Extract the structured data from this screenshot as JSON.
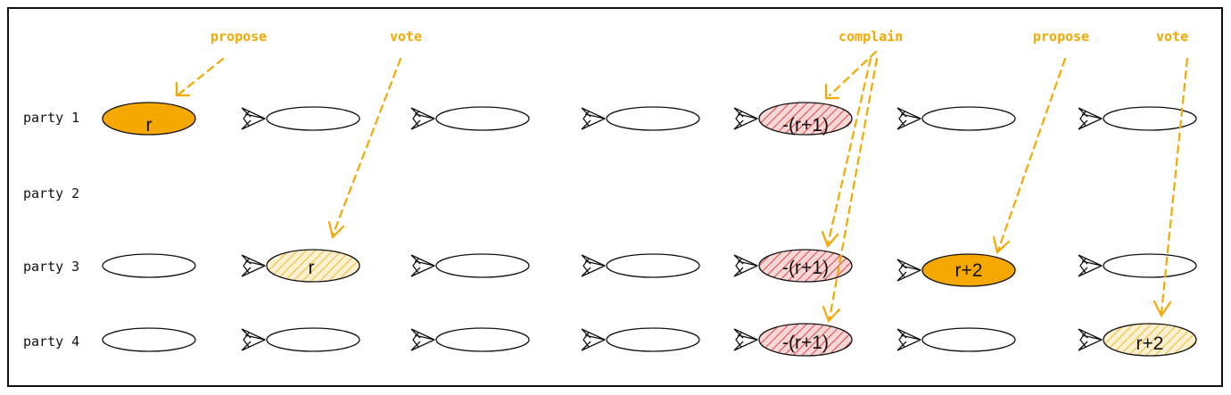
{
  "diagram": {
    "parties": [
      "party 1",
      "party 2",
      "party 3",
      "party 4"
    ],
    "annotations": {
      "propose_1": "propose",
      "vote_1": "vote",
      "complain": "complain",
      "propose_2": "propose",
      "vote_2": "vote"
    },
    "node_labels": {
      "p1_c0": "r",
      "p3_c1": "r",
      "p1_c4": "-(r+1)",
      "p3_c4": "-(r+1)",
      "p4_c4": "-(r+1)",
      "p3_c5": "r+2",
      "p4_c6": "r+2"
    },
    "colors": {
      "proposal_fill": "#f5a800",
      "vote_hatch": "#f0c040",
      "vote_bg": "#fdf1d2",
      "complaint_hatch": "#e04545",
      "complaint_bg": "#f9d7d7",
      "annotation": "#f5a800",
      "stroke": "#111111"
    }
  }
}
